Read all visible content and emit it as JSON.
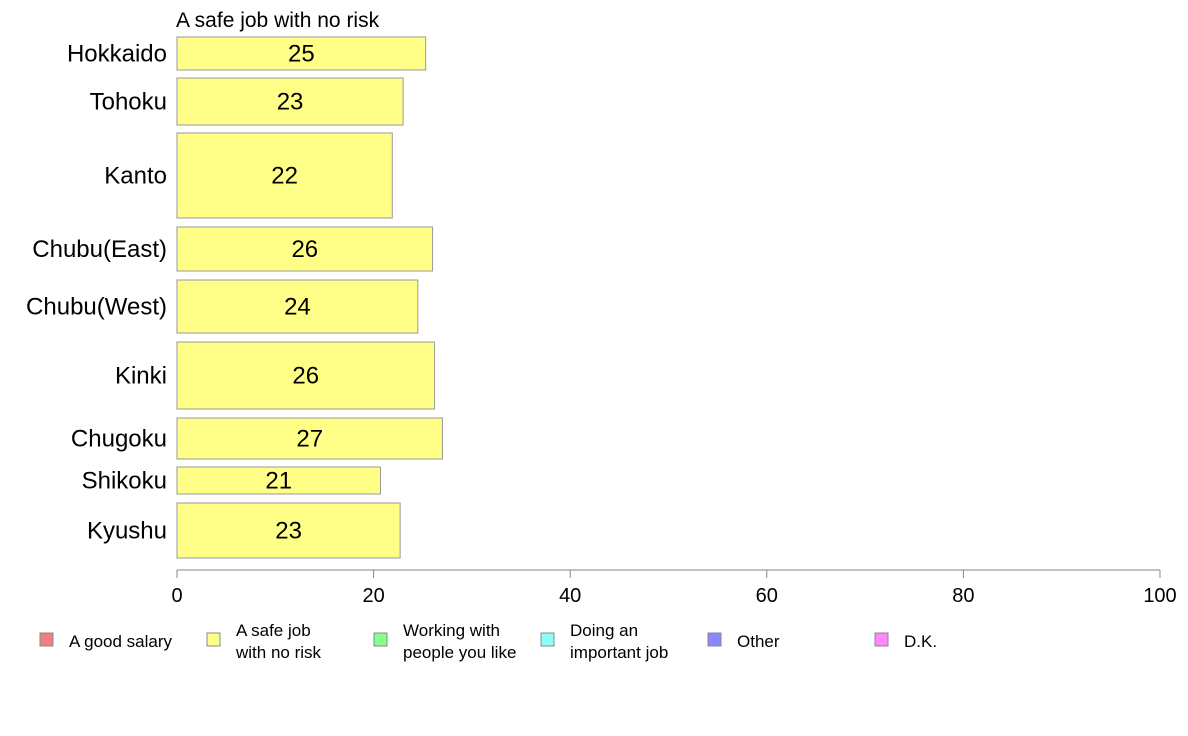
{
  "chart_data": {
    "type": "bar",
    "orientation": "horizontal",
    "title": "A safe job with no risk",
    "categories": [
      "Hokkaido",
      "Tohoku",
      "Kanto",
      "Chubu(East)",
      "Chubu(West)",
      "Kinki",
      "Chugoku",
      "Shikoku",
      "Kyushu"
    ],
    "series": [
      {
        "name": "A safe job with no risk",
        "color": "#ffff88",
        "values": [
          25.3,
          23.0,
          21.9,
          26.0,
          24.5,
          26.2,
          27.0,
          20.7,
          22.7
        ],
        "labels": [
          "25",
          "23",
          "22",
          "26",
          "24",
          "26",
          "27",
          "21",
          "23"
        ]
      }
    ],
    "xlim": [
      0,
      100
    ],
    "xticks": [
      "0",
      "20",
      "40",
      "60",
      "80",
      "100"
    ],
    "grid": false,
    "legend_position": "bottom",
    "legend": [
      {
        "lines": [
          "A good salary"
        ],
        "color": "#f08080"
      },
      {
        "lines": [
          "A safe job",
          "with no risk"
        ],
        "color": "#ffff88"
      },
      {
        "lines": [
          "Working with",
          "people you like"
        ],
        "color": "#88ff88"
      },
      {
        "lines": [
          "Doing an",
          "important job"
        ],
        "color": "#88ffff"
      },
      {
        "lines": [
          "Other"
        ],
        "color": "#8888ff"
      },
      {
        "lines": [
          "D.K."
        ],
        "color": "#ff88ff"
      }
    ]
  }
}
